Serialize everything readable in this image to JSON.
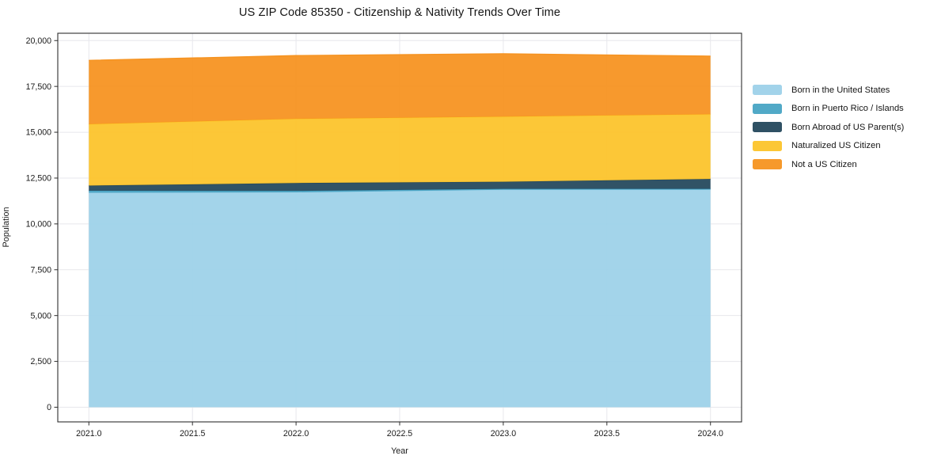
{
  "figure": {
    "background": "#ffffff",
    "spine_color": "#2e2e2e",
    "grid_color": "#e7e7ec",
    "tick_label_color": "#1a1a1a"
  },
  "chart_data": {
    "type": "area",
    "stacked": true,
    "title": "US ZIP Code 85350 - Citizenship & Nativity Trends Over Time",
    "xlabel": "Year",
    "ylabel": "Population",
    "x": [
      2021,
      2022,
      2023,
      2024
    ],
    "series": [
      {
        "name": "Born in the United States",
        "color": "#9dd1e9",
        "values": [
          11700,
          11720,
          11860,
          11870
        ]
      },
      {
        "name": "Born in Puerto Rico / Islands",
        "color": "#48a4c4",
        "values": [
          110,
          80,
          50,
          40
        ]
      },
      {
        "name": "Born Abroad of US Parent(s)",
        "color": "#24485c",
        "values": [
          280,
          430,
          390,
          540
        ]
      },
      {
        "name": "Naturalized US Citizen",
        "color": "#fcc42a",
        "values": [
          3350,
          3500,
          3550,
          3530
        ]
      },
      {
        "name": "Not a US Citizen",
        "color": "#f69320",
        "values": [
          3480,
          3450,
          3430,
          3170
        ]
      }
    ],
    "stack_totals": [
      18920,
      19180,
      19280,
      19150
    ],
    "xlim": [
      2020.85,
      2024.15
    ],
    "ylim": [
      -800,
      20400
    ],
    "x_ticks": [
      2021.0,
      2021.5,
      2022.0,
      2022.5,
      2023.0,
      2023.5,
      2024.0
    ],
    "x_tick_labels": [
      "2021.0",
      "2021.5",
      "2022.0",
      "2022.5",
      "2023.0",
      "2023.5",
      "2024.0"
    ],
    "y_ticks": [
      0,
      2500,
      5000,
      7500,
      10000,
      12500,
      15000,
      17500,
      20000
    ],
    "y_tick_labels": [
      "0",
      "2,500",
      "5,000",
      "7,500",
      "10,000",
      "12,500",
      "15,000",
      "17,500",
      "20,000"
    ],
    "grid": true,
    "legend_position": "upper right, outside plot"
  }
}
